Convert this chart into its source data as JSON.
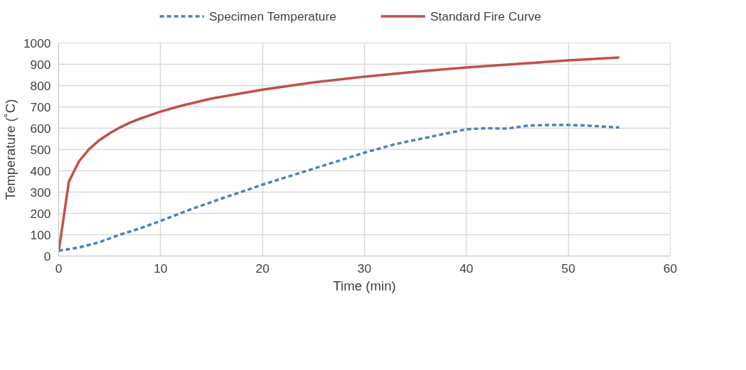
{
  "chart_data": {
    "type": "line",
    "xlabel": "Time (min)",
    "ylabel": "Temperature (˚C)",
    "xlim": [
      0,
      60
    ],
    "xticks": [
      0,
      10,
      20,
      30,
      40,
      50,
      60
    ],
    "ylim": [
      0,
      1000
    ],
    "yticks": [
      0,
      100,
      200,
      300,
      400,
      500,
      600,
      700,
      800,
      900,
      1000
    ],
    "grid": true,
    "legend": "top",
    "marker": "none",
    "series": [
      {
        "name": "Specimen Temperature",
        "color": "#4f81bd",
        "line_style": "dashed",
        "x": [
          0,
          2,
          4,
          6,
          8,
          10,
          13,
          16,
          20,
          25,
          30,
          33,
          36,
          40,
          42,
          44,
          46,
          48,
          50,
          52,
          55
        ],
        "values": [
          25,
          40,
          65,
          100,
          130,
          165,
          220,
          270,
          335,
          410,
          485,
          525,
          555,
          595,
          600,
          598,
          612,
          615,
          615,
          612,
          603
        ]
      },
      {
        "name": "Standard Fire Curve",
        "color": "#c0504d",
        "line_style": "solid",
        "x": [
          0,
          1,
          2,
          3,
          4,
          5,
          6,
          7,
          8,
          10,
          12,
          15,
          20,
          25,
          30,
          35,
          40,
          45,
          50,
          55
        ],
        "values": [
          20,
          349,
          445,
          502,
          544,
          576,
          603,
          626,
          645,
          678,
          705,
          739,
          781,
          815,
          842,
          865,
          885,
          902,
          918,
          932
        ]
      }
    ]
  }
}
